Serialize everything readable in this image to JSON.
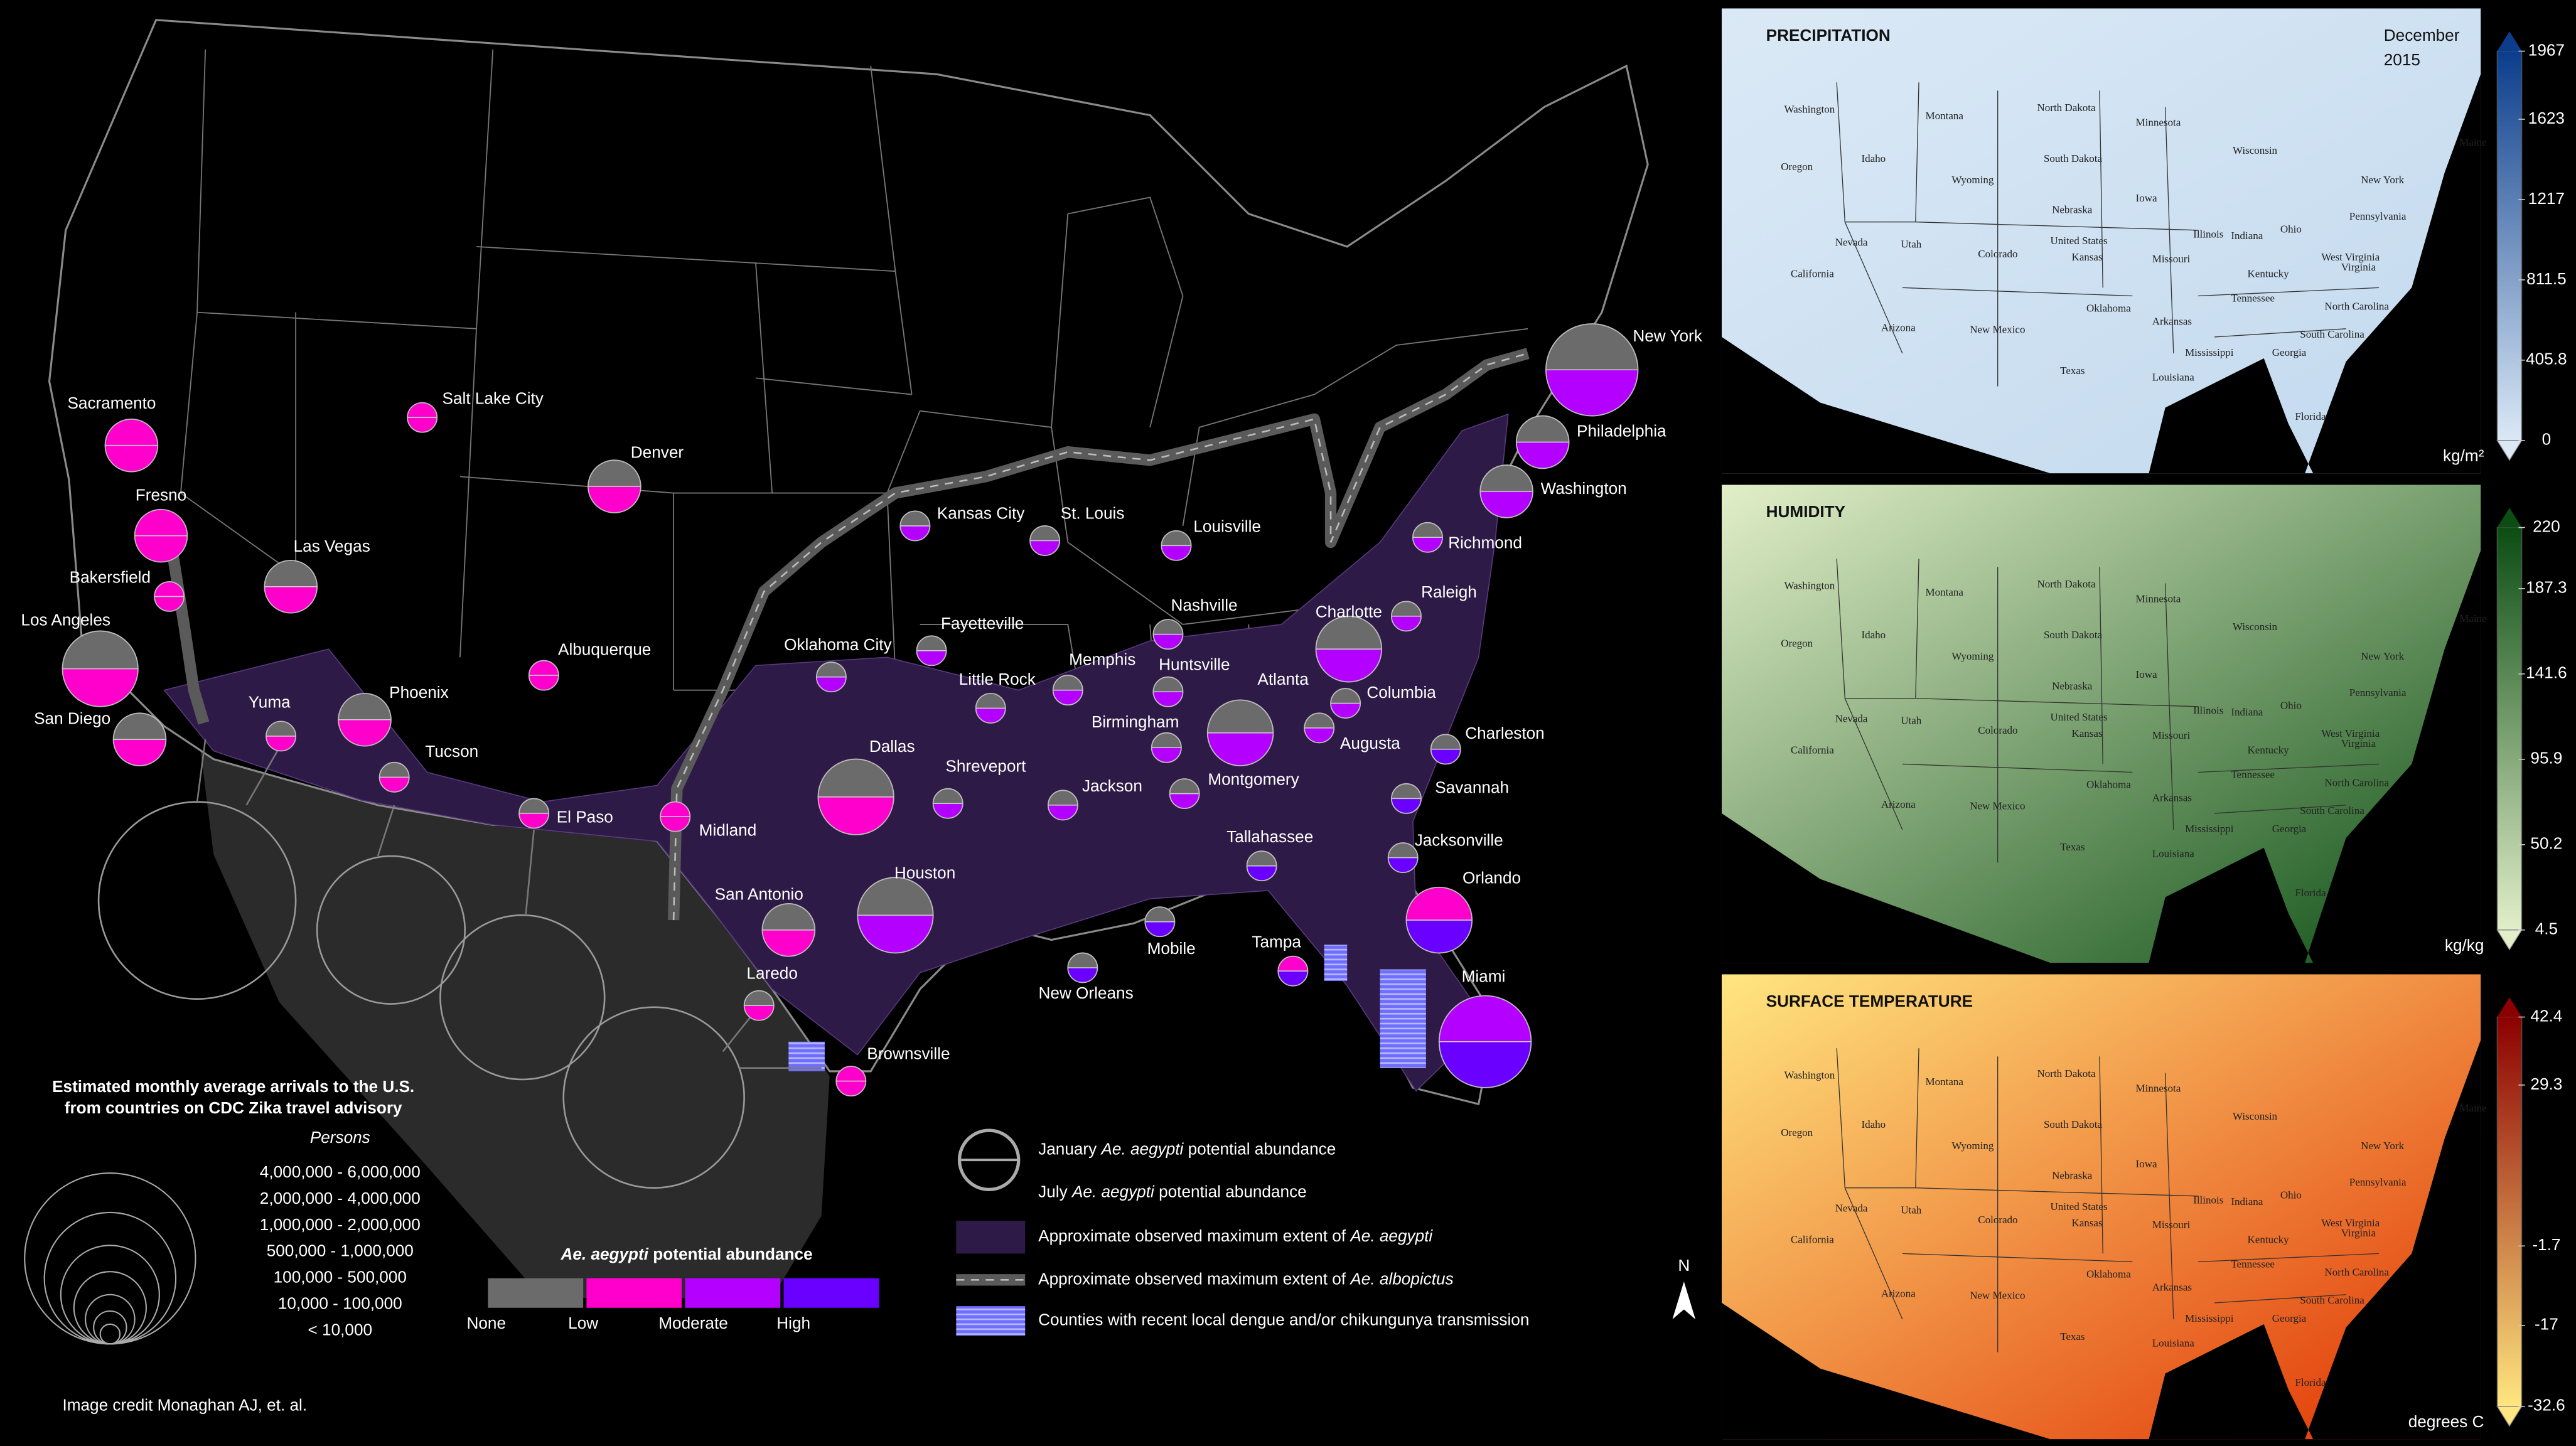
{
  "map": {
    "abundance": {
      "title": {
        "italic": "Ae. aegypti",
        "after": " potential abundance"
      },
      "labels": [
        "None",
        "Low",
        "Moderate",
        "High"
      ],
      "colors": [
        "#6b6b6b",
        "#ff00cc",
        "#b400ff",
        "#6a00ff"
      ]
    },
    "arrivals": {
      "title": [
        "Estimated monthly average arrivals to the U.S.",
        "from countries on CDC Zika travel advisory"
      ],
      "subtitle": "Persons",
      "classes": [
        "4,000,000  -  6,000,000",
        "2,000,000  -  4,000,000",
        "1,000,000  -  2,000,000",
        "500,000  -  1,000,000",
        "100,000  -  500,000",
        "10,000  -  100,000",
        "< 10,000"
      ]
    },
    "cities": [
      {
        "name": "Sacramento",
        "january": "Low",
        "july": "Low",
        "arrivals": "500,000  -  1,000,000"
      },
      {
        "name": "Salt Lake City",
        "january": "Low",
        "july": "Low",
        "arrivals": "100,000  -  500,000"
      },
      {
        "name": "Denver",
        "january": "None",
        "july": "Low",
        "arrivals": "500,000  -  1,000,000"
      },
      {
        "name": "Fresno",
        "january": "Low",
        "july": "Low",
        "arrivals": "500,000  -  1,000,000"
      },
      {
        "name": "Bakersfield",
        "january": "Low",
        "july": "Low",
        "arrivals": "100,000  -  500,000"
      },
      {
        "name": "Las Vegas",
        "january": "None",
        "july": "Low",
        "arrivals": "500,000  -  1,000,000"
      },
      {
        "name": "Los Angeles",
        "january": "None",
        "july": "Low",
        "arrivals": "2,000,000  -  4,000,000"
      },
      {
        "name": "San Diego",
        "january": "None",
        "july": "Low",
        "arrivals": "500,000  -  1,000,000"
      },
      {
        "name": "Yuma",
        "january": "None",
        "july": "Low",
        "arrivals": "100,000  -  500,000"
      },
      {
        "name": "Phoenix",
        "january": "None",
        "july": "Low",
        "arrivals": "500,000  -  1,000,000"
      },
      {
        "name": "Tucson",
        "january": "None",
        "july": "Low",
        "arrivals": "100,000  -  500,000"
      },
      {
        "name": "Albuquerque",
        "january": "Low",
        "july": "Low",
        "arrivals": "100,000  -  500,000"
      },
      {
        "name": "El Paso",
        "january": "None",
        "july": "Low",
        "arrivals": "100,000  -  500,000"
      },
      {
        "name": "Midland",
        "january": "Low",
        "july": "Low",
        "arrivals": "100,000  -  500,000"
      },
      {
        "name": "Oklahoma City",
        "january": "None",
        "july": "Moderate",
        "arrivals": "100,000  -  500,000"
      },
      {
        "name": "Dallas",
        "january": "None",
        "july": "Low",
        "arrivals": "2,000,000  -  4,000,000"
      },
      {
        "name": "San Antonio",
        "january": "None",
        "july": "Low",
        "arrivals": "500,000  -  1,000,000"
      },
      {
        "name": "Laredo",
        "january": "None",
        "july": "Low",
        "arrivals": "100,000  -  500,000"
      },
      {
        "name": "Brownsville",
        "january": "Low",
        "july": "Low",
        "arrivals": "100,000  -  500,000"
      },
      {
        "name": "Houston",
        "january": "None",
        "july": "Moderate",
        "arrivals": "2,000,000  -  4,000,000"
      },
      {
        "name": "Shreveport",
        "january": "None",
        "july": "Moderate",
        "arrivals": "100,000  -  500,000"
      },
      {
        "name": "Kansas City",
        "january": "None",
        "july": "Moderate",
        "arrivals": "100,000  -  500,000"
      },
      {
        "name": "St. Louis",
        "january": "None",
        "july": "Moderate",
        "arrivals": "100,000  -  500,000"
      },
      {
        "name": "Louisville",
        "january": "None",
        "july": "Moderate",
        "arrivals": "100,000  -  500,000"
      },
      {
        "name": "Fayetteville",
        "january": "None",
        "july": "Moderate",
        "arrivals": "100,000  -  500,000"
      },
      {
        "name": "Little Rock",
        "january": "None",
        "july": "Moderate",
        "arrivals": "100,000  -  500,000"
      },
      {
        "name": "Memphis",
        "january": "None",
        "july": "Moderate",
        "arrivals": "100,000  -  500,000"
      },
      {
        "name": "Nashville",
        "january": "None",
        "july": "Moderate",
        "arrivals": "100,000  -  500,000"
      },
      {
        "name": "Huntsville",
        "january": "None",
        "july": "Moderate",
        "arrivals": "100,000  -  500,000"
      },
      {
        "name": "Birmingham",
        "january": "None",
        "july": "Moderate",
        "arrivals": "100,000  -  500,000"
      },
      {
        "name": "Jackson",
        "january": "None",
        "july": "Moderate",
        "arrivals": "100,000  -  500,000"
      },
      {
        "name": "Montgomery",
        "january": "None",
        "july": "Moderate",
        "arrivals": "100,000  -  500,000"
      },
      {
        "name": "Atlanta",
        "january": "None",
        "july": "Moderate",
        "arrivals": "1,000,000  -  2,000,000"
      },
      {
        "name": "Charlotte",
        "january": "None",
        "july": "Moderate",
        "arrivals": "1,000,000  -  2,000,000"
      },
      {
        "name": "Raleigh",
        "january": "None",
        "july": "Moderate",
        "arrivals": "100,000  -  500,000"
      },
      {
        "name": "Columbia",
        "january": "None",
        "july": "Moderate",
        "arrivals": "100,000  -  500,000"
      },
      {
        "name": "Augusta",
        "january": "None",
        "july": "Moderate",
        "arrivals": "100,000  -  500,000"
      },
      {
        "name": "Charleston",
        "january": "None",
        "july": "High",
        "arrivals": "100,000  -  500,000"
      },
      {
        "name": "Savannah",
        "january": "None",
        "july": "High",
        "arrivals": "100,000  -  500,000"
      },
      {
        "name": "Jacksonville",
        "january": "None",
        "july": "High",
        "arrivals": "100,000  -  500,000"
      },
      {
        "name": "Tallahassee",
        "january": "None",
        "july": "High",
        "arrivals": "100,000  -  500,000"
      },
      {
        "name": "Orlando",
        "january": "Low",
        "july": "High",
        "arrivals": "1,000,000  -  2,000,000"
      },
      {
        "name": "Tampa",
        "january": "Low",
        "july": "High",
        "arrivals": "100,000  -  500,000"
      },
      {
        "name": "Miami",
        "january": "Moderate",
        "july": "High",
        "arrivals": "4,000,000  -  6,000,000"
      },
      {
        "name": "Mobile",
        "january": "None",
        "july": "High",
        "arrivals": "100,000  -  500,000"
      },
      {
        "name": "New Orleans",
        "january": "None",
        "july": "High",
        "arrivals": "100,000  -  500,000"
      },
      {
        "name": "Richmond",
        "january": "None",
        "july": "Moderate",
        "arrivals": "100,000  -  500,000"
      },
      {
        "name": "Washington",
        "january": "None",
        "july": "Moderate",
        "arrivals": "500,000  -  1,000,000"
      },
      {
        "name": "Philadelphia",
        "january": "None",
        "july": "Moderate",
        "arrivals": "500,000  -  1,000,000"
      },
      {
        "name": "New York",
        "january": "None",
        "july": "Moderate",
        "arrivals": "4,000,000  -  6,000,000"
      }
    ],
    "legend_items": [
      {
        "text": "January ",
        "italic": "Ae. aegypti",
        "after": " potential abundance"
      },
      {
        "text": "July ",
        "italic": "Ae. aegypti",
        "after": " potential abundance"
      },
      {
        "text": "Approximate observed maximum extent of ",
        "italic": "Ae. aegypti"
      },
      {
        "text": "Approximate observed maximum extent of ",
        "italic": "Ae. albopictus"
      },
      {
        "text": "Counties with recent local dengue and/or chikungunya transmission"
      }
    ],
    "north": "N",
    "credit": "Image credit Monaghan AJ, et. al."
  },
  "panels": [
    {
      "title": "PRECIPITATION",
      "date": [
        "December",
        "2015"
      ],
      "unit": "kg/m²",
      "ylim": [
        0,
        1967
      ],
      "yticks": [
        0,
        405.8,
        811.5,
        1217,
        1623,
        1967
      ],
      "colors": [
        "#dbe9f6",
        "#0b3d8c"
      ]
    },
    {
      "title": "HUMIDITY",
      "unit": "kg/kg",
      "ylim": [
        4.5,
        220
      ],
      "yticks": [
        4.5,
        50.2,
        95.9,
        141.6,
        187.3,
        220
      ],
      "colors": [
        "#e2efc9",
        "#0b4d12"
      ]
    },
    {
      "title": "SURFACE TEMPERATURE",
      "unit": "degrees C",
      "ylim": [
        -32.6,
        42.4
      ],
      "yticks": [
        -32.6,
        -17,
        -1.7,
        29.3,
        42.4
      ],
      "colors": [
        "#ffe680",
        "#8c0000"
      ]
    }
  ],
  "state_labels": [
    "Washington",
    "Oregon",
    "Idaho",
    "Montana",
    "Wyoming",
    "North Dakota",
    "South Dakota",
    "Nebraska",
    "Minnesota",
    "Wisconsin",
    "Iowa",
    "Illinois",
    "Indiana",
    "Ohio",
    "Pennsylvania",
    "New York",
    "Maine",
    "Kansas",
    "Missouri",
    "Kentucky",
    "West Virginia",
    "Virginia",
    "North Carolina",
    "South Carolina",
    "Tennessee",
    "Arkansas",
    "Mississippi",
    "Georgia",
    "Florida",
    "Louisiana",
    "Texas",
    "Oklahoma",
    "New Mexico",
    "Arizona",
    "Colorado",
    "Utah",
    "Nevada",
    "California",
    "United States"
  ]
}
